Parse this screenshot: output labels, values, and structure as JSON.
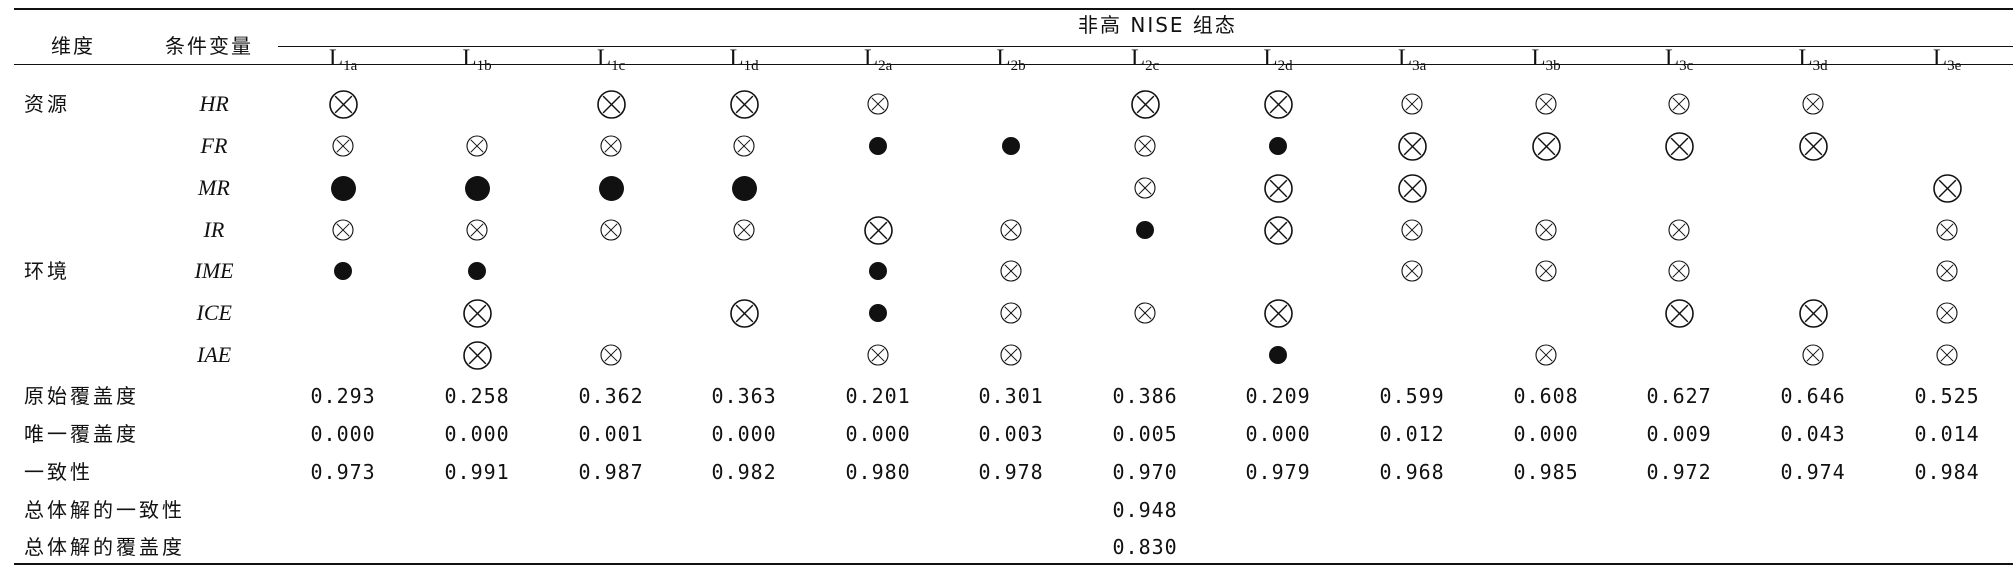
{
  "header": {
    "dim_label": "维度",
    "var_label": "条件变量",
    "group_label": "非高 NISE 组态",
    "configs": [
      {
        "main": "L",
        "sub": "1a"
      },
      {
        "main": "L",
        "sub": "1b"
      },
      {
        "main": "L",
        "sub": "1c"
      },
      {
        "main": "L",
        "sub": "1d"
      },
      {
        "main": "L",
        "sub": "2a"
      },
      {
        "main": "L",
        "sub": "2b"
      },
      {
        "main": "L",
        "sub": "2c"
      },
      {
        "main": "L",
        "sub": "2d"
      },
      {
        "main": "L",
        "sub": "3a"
      },
      {
        "main": "L",
        "sub": "3b"
      },
      {
        "main": "L",
        "sub": "3c"
      },
      {
        "main": "L",
        "sub": "3d"
      },
      {
        "main": "L",
        "sub": "3e"
      }
    ]
  },
  "legend_symbols": {
    "big_present": "large filled circle",
    "small_present": "small filled circle",
    "big_absent": "large crossed circle",
    "small_absent": "small crossed circle",
    "empty": "blank"
  },
  "rows": [
    {
      "dimension": "资源",
      "variable": "HR",
      "cells": [
        "big_absent",
        "",
        "big_absent",
        "big_absent",
        "small_absent",
        "",
        "big_absent",
        "big_absent",
        "small_absent",
        "small_absent",
        "small_absent",
        "small_absent",
        ""
      ]
    },
    {
      "dimension": "",
      "variable": "FR",
      "cells": [
        "small_absent",
        "small_absent",
        "small_absent",
        "small_absent",
        "small_present",
        "small_present",
        "small_absent",
        "small_present",
        "big_absent",
        "big_absent",
        "big_absent",
        "big_absent",
        ""
      ]
    },
    {
      "dimension": "",
      "variable": "MR",
      "cells": [
        "big_present",
        "big_present",
        "big_present",
        "big_present",
        "",
        "",
        "small_absent",
        "big_absent",
        "big_absent",
        "",
        "",
        "",
        "big_absent"
      ]
    },
    {
      "dimension": "",
      "variable": "IR",
      "cells": [
        "small_absent",
        "small_absent",
        "small_absent",
        "small_absent",
        "big_absent",
        "small_absent",
        "small_present",
        "big_absent",
        "small_absent",
        "small_absent",
        "small_absent",
        "",
        "small_absent"
      ]
    },
    {
      "dimension": "环境",
      "variable": "IME",
      "cells": [
        "small_present",
        "small_present",
        "",
        "",
        "small_present",
        "small_absent",
        "",
        "",
        "small_absent",
        "small_absent",
        "small_absent",
        "",
        "small_absent"
      ]
    },
    {
      "dimension": "",
      "variable": "ICE",
      "cells": [
        "",
        "big_absent",
        "",
        "big_absent",
        "small_present",
        "small_absent",
        "small_absent",
        "big_absent",
        "",
        "",
        "big_absent",
        "big_absent",
        "small_absent"
      ]
    },
    {
      "dimension": "",
      "variable": "IAE",
      "cells": [
        "",
        "big_absent",
        "small_absent",
        "",
        "small_absent",
        "small_absent",
        "",
        "small_present",
        "",
        "small_absent",
        "",
        "small_absent",
        "small_absent"
      ]
    }
  ],
  "stats": [
    {
      "label": "原始覆盖度",
      "values": [
        "0.293",
        "0.258",
        "0.362",
        "0.363",
        "0.201",
        "0.301",
        "0.386",
        "0.209",
        "0.599",
        "0.608",
        "0.627",
        "0.646",
        "0.525"
      ]
    },
    {
      "label": "唯一覆盖度",
      "values": [
        "0.000",
        "0.000",
        "0.001",
        "0.000",
        "0.000",
        "0.003",
        "0.005",
        "0.000",
        "0.012",
        "0.000",
        "0.009",
        "0.043",
        "0.014"
      ]
    },
    {
      "label": "一致性",
      "values": [
        "0.973",
        "0.991",
        "0.987",
        "0.982",
        "0.980",
        "0.978",
        "0.970",
        "0.979",
        "0.968",
        "0.985",
        "0.972",
        "0.974",
        "0.984"
      ]
    }
  ],
  "overall": [
    {
      "label": "总体解的一致性",
      "value": "0.948"
    },
    {
      "label": "总体解的覆盖度",
      "value": "0.830"
    }
  ],
  "colors": {
    "ink": "#111111",
    "background": "#ffffff"
  }
}
